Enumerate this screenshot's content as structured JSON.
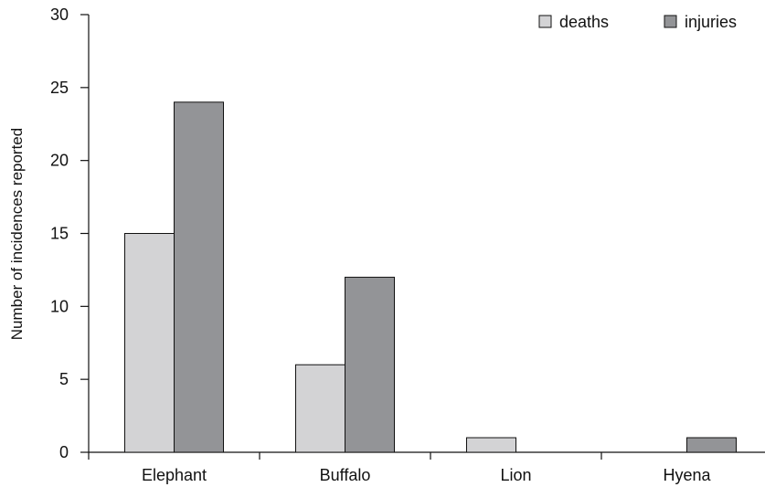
{
  "chart_data": {
    "type": "bar",
    "title": "",
    "xlabel": "",
    "ylabel": "Number of incidences reported",
    "categories": [
      "Elephant",
      "Buffalo",
      "Lion",
      "Hyena"
    ],
    "series": [
      {
        "name": "deaths",
        "values": [
          15,
          6,
          1,
          0
        ],
        "color": "#d3d3d5"
      },
      {
        "name": "injuries",
        "values": [
          24,
          12,
          0,
          1
        ],
        "color": "#939497"
      }
    ],
    "ylim": [
      0,
      30
    ],
    "yticks": [
      0,
      5,
      10,
      15,
      20,
      25,
      30
    ],
    "grid": false,
    "legend": "top-right"
  }
}
